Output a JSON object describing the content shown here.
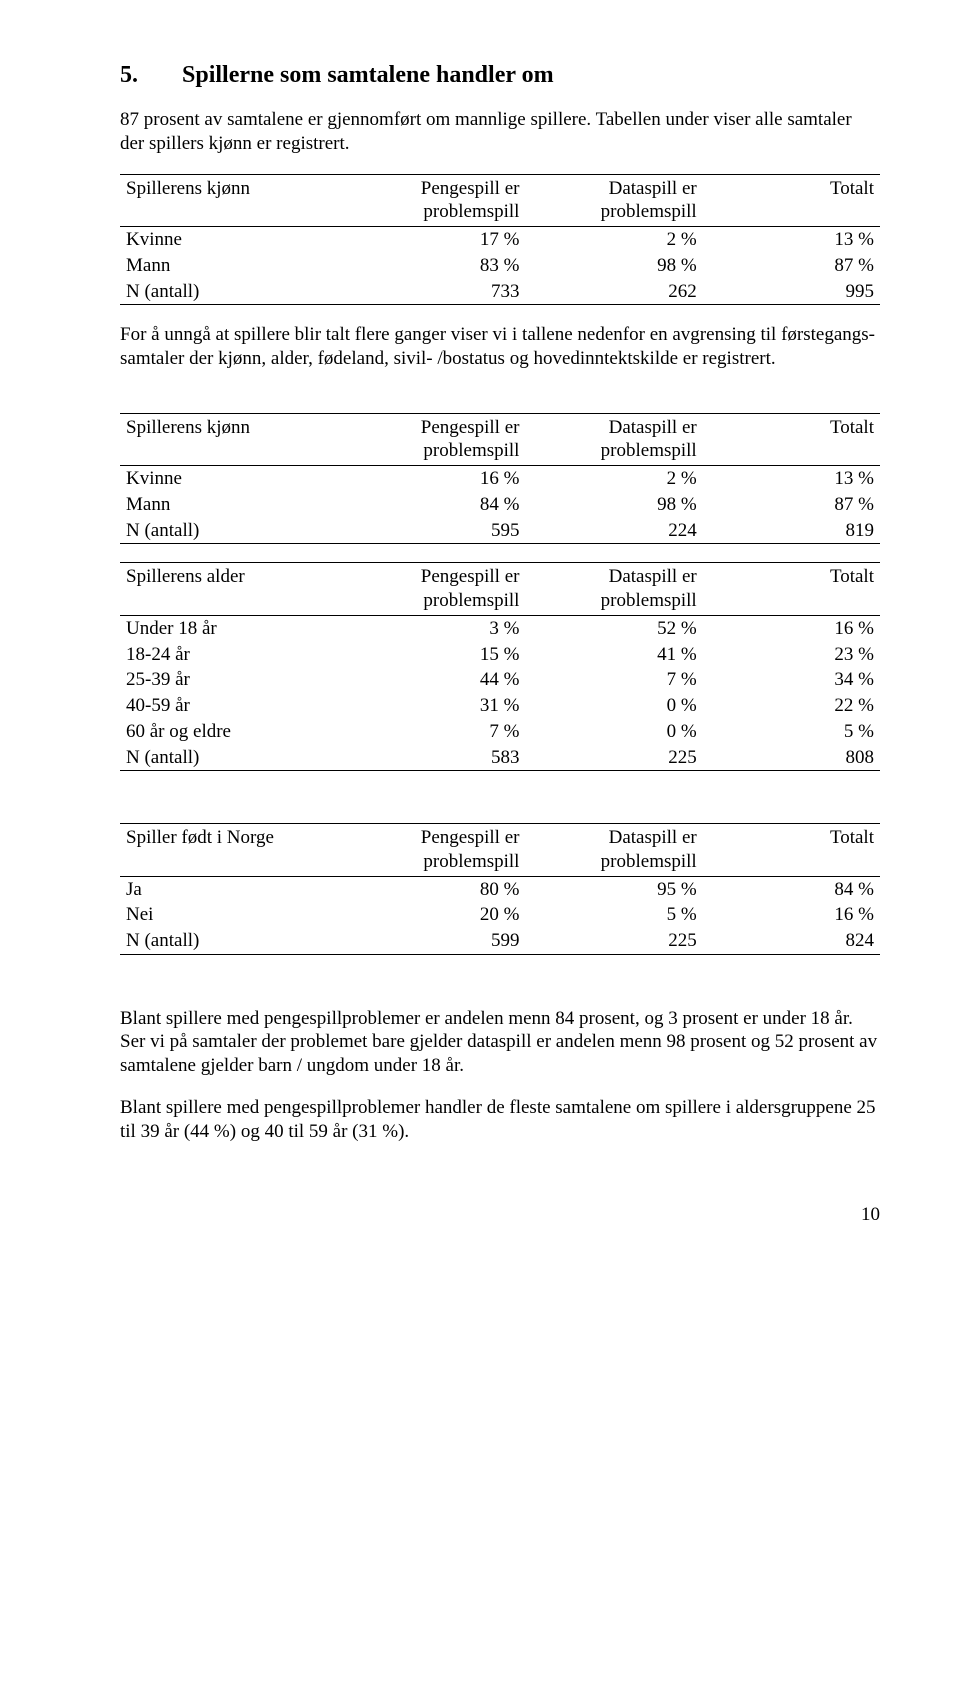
{
  "heading": {
    "number": "5.",
    "title": "Spillerne som samtalene handler om"
  },
  "intro": "87 prosent av samtalene er gjennomført om mannlige spillere. Tabellen under viser alle samtaler der spillers kjønn er registrert.",
  "columns": {
    "penge": "Pengespill er problemspill",
    "data": "Dataspill er problemspill",
    "total": "Totalt"
  },
  "table1": {
    "rowhead": "Spillerens kjønn",
    "rows": [
      {
        "label": "Kvinne",
        "c1": "17 %",
        "c2": "2 %",
        "c3": "13 %"
      },
      {
        "label": "Mann",
        "c1": "83 %",
        "c2": "98 %",
        "c3": "87 %"
      },
      {
        "label": "N (antall)",
        "c1": "733",
        "c2": "262",
        "c3": "995"
      }
    ]
  },
  "mid_para": "For å unngå at spillere blir talt flere ganger viser vi i tallene nedenfor en avgrensing til førstegangs-samtaler der kjønn, alder, fødeland, sivil- /bostatus og hovedinntektskilde er registrert.",
  "table2": {
    "rowhead": "Spillerens kjønn",
    "rows": [
      {
        "label": "Kvinne",
        "c1": "16 %",
        "c2": "2 %",
        "c3": "13 %"
      },
      {
        "label": "Mann",
        "c1": "84 %",
        "c2": "98 %",
        "c3": "87 %"
      },
      {
        "label": "N (antall)",
        "c1": "595",
        "c2": "224",
        "c3": "819"
      }
    ]
  },
  "table3": {
    "rowhead": "Spillerens alder",
    "rows": [
      {
        "label": "Under 18 år",
        "c1": "3 %",
        "c2": "52 %",
        "c3": "16 %"
      },
      {
        "label": "18-24 år",
        "c1": "15 %",
        "c2": "41 %",
        "c3": "23 %"
      },
      {
        "label": "25-39 år",
        "c1": "44 %",
        "c2": "7 %",
        "c3": "34 %"
      },
      {
        "label": "40-59 år",
        "c1": "31 %",
        "c2": "0 %",
        "c3": "22 %"
      },
      {
        "label": "60 år og eldre",
        "c1": "7 %",
        "c2": "0 %",
        "c3": "5 %"
      },
      {
        "label": "N (antall)",
        "c1": "583",
        "c2": "225",
        "c3": "808"
      }
    ]
  },
  "table4": {
    "rowhead": "Spiller født i Norge",
    "rows": [
      {
        "label": "Ja",
        "c1": "80 %",
        "c2": "95 %",
        "c3": "84 %"
      },
      {
        "label": "Nei",
        "c1": "20 %",
        "c2": "5 %",
        "c3": "16 %"
      },
      {
        "label": "N (antall)",
        "c1": "599",
        "c2": "225",
        "c3": "824"
      }
    ]
  },
  "para2": "Blant spillere med pengespillproblemer er andelen menn 84 prosent, og 3 prosent er under 18 år. Ser vi på samtaler der problemet bare gjelder dataspill er andelen menn 98 prosent og 52 prosent av samtalene gjelder barn / ungdom under 18 år.",
  "para3": "Blant spillere med pengespillproblemer handler de fleste samtalene om spillere i aldersgruppene 25 til 39 år (44 %) og 40 til 59 år (31 %).",
  "page_number": "10"
}
